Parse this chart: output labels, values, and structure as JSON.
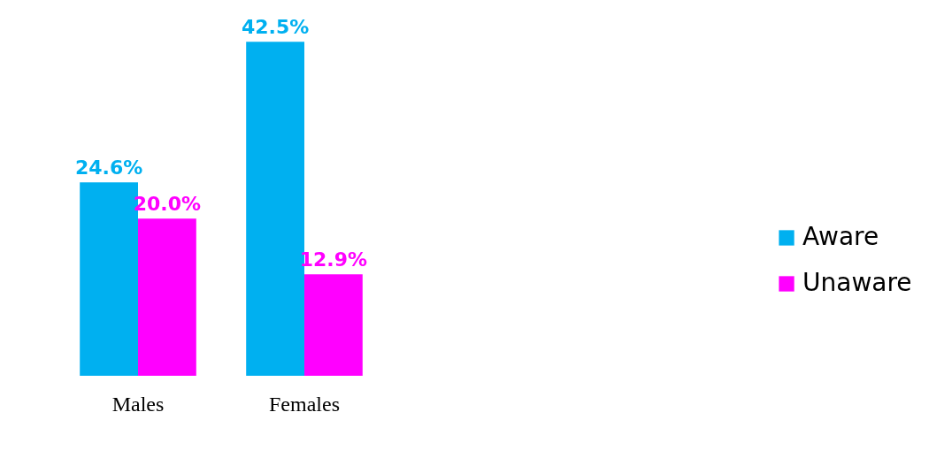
{
  "chart_data": {
    "type": "bar",
    "categories": [
      "Males",
      "Females"
    ],
    "series": [
      {
        "name": "Aware",
        "color": "#00b0f0",
        "values": [
          24.6,
          42.5
        ],
        "value_labels": [
          "24.6%",
          "42.5%"
        ]
      },
      {
        "name": "Unaware",
        "color": "#ff00ff",
        "values": [
          20.0,
          12.9
        ],
        "value_labels": [
          "20.0%",
          "12.9%"
        ]
      }
    ],
    "legend": "right"
  }
}
